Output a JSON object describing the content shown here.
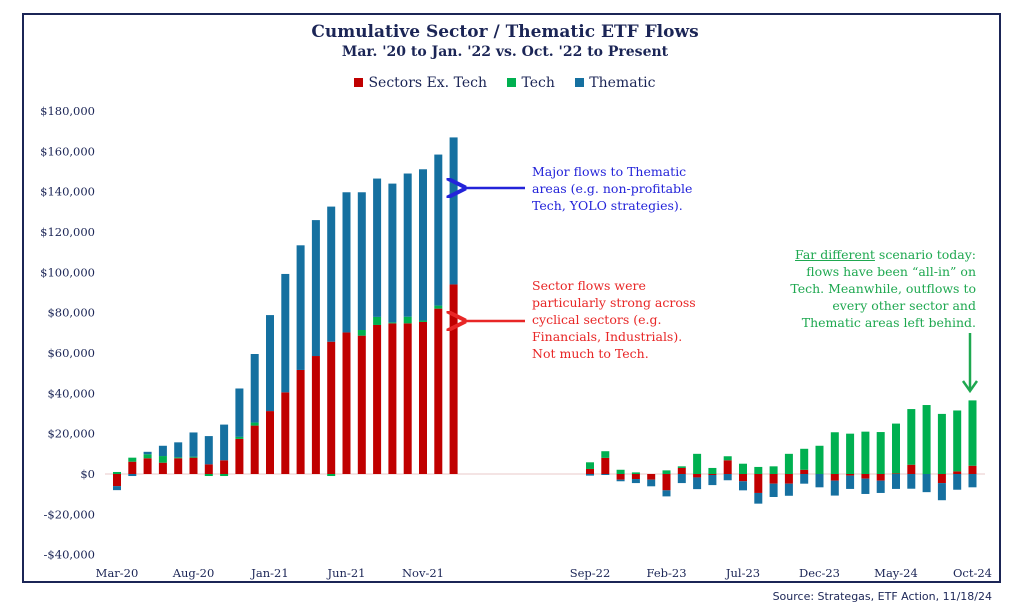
{
  "chart_data": {
    "type": "bar",
    "stacked": true,
    "title": "Cumulative Sector / Thematic ETF Flows",
    "subtitle": "Mar. '20 to Jan. '22 vs. Oct. '22 to Present",
    "legend_position": "top",
    "ylim": [
      -40000,
      180000
    ],
    "yticks": [
      -40000,
      -20000,
      0,
      20000,
      40000,
      60000,
      80000,
      100000,
      120000,
      140000,
      160000,
      180000
    ],
    "ytick_labels": [
      "-$40,000",
      "-$20,000",
      "$0",
      "$20,000",
      "$40,000",
      "$60,000",
      "$80,000",
      "$100,000",
      "$120,000",
      "$140,000",
      "$160,000",
      "$180,000"
    ],
    "colors": {
      "Sectors Ex. Tech": "#c00000",
      "Tech": "#00b050",
      "Thematic": "#1570a0"
    },
    "periods": [
      {
        "categories": [
          "Mar-20",
          "Apr-20",
          "May-20",
          "Jun-20",
          "Jul-20",
          "Aug-20",
          "Sep-20",
          "Oct-20",
          "Nov-20",
          "Dec-20",
          "Jan-21",
          "Feb-21",
          "Mar-21",
          "Apr-21",
          "May-21",
          "Jun-21",
          "Jul-21",
          "Aug-21",
          "Sep-21",
          "Oct-21",
          "Nov-21",
          "Dec-21",
          "Jan-22"
        ],
        "tick_labels": [
          "Mar-20",
          "Aug-20",
          "Jan-21",
          "Jun-21",
          "Nov-21"
        ],
        "series": [
          {
            "name": "Sectors Ex. Tech",
            "values": [
              -6000,
              6100,
              7800,
              5600,
              7800,
              8100,
              4800,
              6800,
              17400,
              24000,
              31200,
              40500,
              51600,
              58500,
              65600,
              70200,
              68600,
              73900,
              74700,
              74700,
              75400,
              82000,
              94000
            ]
          },
          {
            "name": "Tech",
            "values": [
              1000,
              2000,
              2000,
              3300,
              500,
              500,
              -1000,
              -1000,
              1000,
              1500,
              0,
              0,
              0,
              0,
              -1000,
              0,
              2800,
              4000,
              500,
              3300,
              700,
              1500,
              0
            ]
          },
          {
            "name": "Thematic",
            "values": [
              -2000,
              -1000,
              1200,
              5100,
              7400,
              12000,
              14000,
              17700,
              24000,
              34000,
              47600,
              58700,
              61800,
              67400,
              67000,
              69500,
              68300,
              68600,
              68800,
              71000,
              75000,
              74900,
              72900
            ]
          }
        ]
      },
      {
        "categories": [
          "Sep-22",
          "Oct-22",
          "Nov-22",
          "Dec-22",
          "Jan-23",
          "Feb-23",
          "Mar-23",
          "Apr-23",
          "May-23",
          "Jun-23",
          "Jul-23",
          "Aug-23",
          "Sep-23",
          "Oct-23",
          "Nov-23",
          "Dec-23",
          "Jan-24",
          "Feb-24",
          "Mar-24",
          "Apr-24",
          "May-24",
          "Jun-24",
          "Jul-24",
          "Aug-24",
          "Sep-24",
          "Oct-24"
        ],
        "tick_labels": [
          "Sep-22",
          "Feb-23",
          "Jul-23",
          "Dec-23",
          "May-24",
          "Oct-24"
        ],
        "series": [
          {
            "name": "Sectors Ex. Tech",
            "values": [
              2500,
              8000,
              -2800,
              -2500,
              -2800,
              -8100,
              3000,
              -1700,
              -500,
              6800,
              -3600,
              -9400,
              -4800,
              -4800,
              2100,
              0,
              -3300,
              -800,
              -2300,
              -3300,
              300,
              4600,
              0,
              -4500,
              1300,
              4100
            ]
          },
          {
            "name": "Tech",
            "values": [
              3300,
              3300,
              2100,
              800,
              0,
              1800,
              800,
              10000,
              3000,
              2000,
              5100,
              3500,
              3800,
              10000,
              10400,
              14000,
              20700,
              20000,
              21000,
              20800,
              24700,
              27600,
              34200,
              29800,
              30200,
              32400
            ]
          },
          {
            "name": "Thematic",
            "values": [
              -800,
              -500,
              -800,
              -2000,
              -3300,
              -3000,
              -4500,
              -5800,
              -5000,
              -3100,
              -4500,
              -5300,
              -6600,
              -6000,
              -4800,
              -6600,
              -7400,
              -6600,
              -7600,
              -6100,
              -7400,
              -7300,
              -9000,
              -8500,
              -7800,
              -6600
            ]
          }
        ]
      }
    ],
    "annotations": {
      "thematic": [
        "Major flows to Thematic",
        "areas (e.g. non-profitable",
        "Tech, YOLO strategies)."
      ],
      "sectors": [
        "Sector flows were",
        "particularly strong across",
        "cyclical sectors (e.g.",
        "Financials, Industrials).",
        "Not much to Tech."
      ],
      "today_underlined": "Far different",
      "today": [
        " scenario today:",
        "flows have been “all-in” on",
        "Tech. Meanwhile, outflows to",
        "every other sector and",
        "Thematic areas left behind."
      ]
    }
  },
  "source": "Source: Strategas, ETF Action, 11/18/24"
}
